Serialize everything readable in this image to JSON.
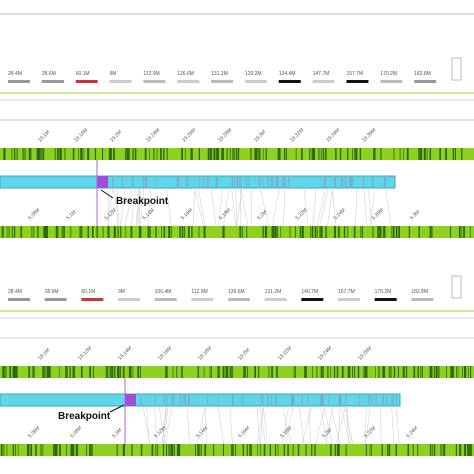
{
  "panels": [
    {
      "ideogram_labels": [
        "28.4M",
        "28.6M",
        "60.1M",
        "9M",
        "112.9M",
        "126.6M",
        "131.2M",
        "120.2M",
        "134.4M",
        "147.7M",
        "157.7M",
        "170.2M",
        "182.8M"
      ],
      "scale_top_labels": [
        "19.1M",
        "19.18M",
        "19.2M",
        "19.24M",
        "19.26M",
        "19.28M",
        "19.3M",
        "19.32M",
        "19.34M",
        "19.36M"
      ],
      "scale_bottom_labels": [
        "5.08M",
        "5.1M",
        "5.12M",
        "5.14M",
        "5.16M",
        "5.18M",
        "5.2M",
        "5.22M",
        "5.24M",
        "5.26M",
        "5.3M"
      ],
      "annotation": "Breakpoint"
    },
    {
      "ideogram_labels": [
        "28.4M",
        "28.6M",
        "60.1M",
        "9M",
        "106.4M",
        "112.9M",
        "126.6M",
        "131.2M",
        "140.7M",
        "157.7M",
        "170.2M",
        "182.8M"
      ],
      "scale_top_labels": [
        "19.1M",
        "19.12M",
        "19.14M",
        "19.16M",
        "19.18M",
        "19.2M",
        "19.22M",
        "19.24M",
        "19.26M"
      ],
      "scale_bottom_labels": [
        "5.06M",
        "5.08M",
        "5.1M",
        "5.12M",
        "5.14M",
        "5.16M",
        "5.18M",
        "5.2M",
        "5.22M",
        "5.24M"
      ],
      "annotation": "Breakpoint"
    }
  ]
}
